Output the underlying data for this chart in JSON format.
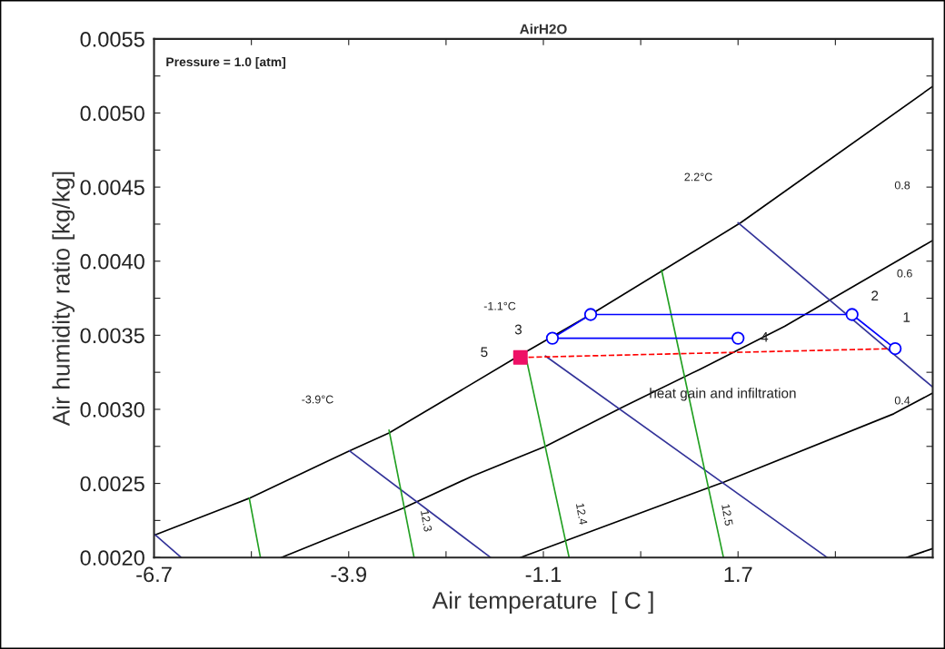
{
  "chart_data": {
    "type": "line",
    "title": "AirH2O",
    "xlabel": "Air temperature  [ C ]",
    "ylabel": "Air humidity ratio [kg/kg]",
    "xlim": [
      -6.7,
      4.5
    ],
    "ylim": [
      0.002,
      0.0055
    ],
    "xticks": [
      -6.7,
      {
        "value": -5.3,
        "label": null
      },
      -3.9,
      {
        "value": -2.5,
        "label": null
      },
      -1.1,
      {
        "value": 0.3,
        "label": null
      },
      1.7,
      {
        "value": 3.1,
        "label": null
      }
    ],
    "yticks": [
      {
        "value": 0.002,
        "label": "0.0020"
      },
      {
        "value": 0.00225,
        "label": null
      },
      0.0025,
      {
        "value": 0.00275,
        "label": null
      },
      {
        "value": 0.003,
        "label": "0.0030"
      },
      {
        "value": 0.00325,
        "label": null
      },
      0.0035,
      {
        "value": 0.00375,
        "label": null
      },
      {
        "value": 0.004,
        "label": "0.0040"
      },
      {
        "value": 0.00425,
        "label": null
      },
      0.0045,
      {
        "value": 0.00475,
        "label": null
      },
      {
        "value": 0.005,
        "label": "0.0050"
      },
      {
        "value": 0.00525,
        "label": null
      },
      0.0055
    ],
    "grid": false,
    "series": [
      {
        "type": "line",
        "color": "#000000",
        "x": [
          -6.7,
          -5.33,
          -3.89,
          -3.32,
          -1.49,
          -0.42,
          1.74,
          4.5
        ],
        "values": [
          0.00215,
          0.0024,
          0.00272,
          0.00284,
          0.00335,
          0.00364,
          0.00426,
          0.00518
        ]
      },
      {
        "type": "line",
        "color": "#000000",
        "x": [
          -4.87,
          -3.13,
          -2.12,
          -1.07,
          0.06,
          1.15,
          2.37,
          4.5
        ],
        "values": [
          0.002,
          0.00233,
          0.00255,
          0.00275,
          0.00302,
          0.00327,
          0.00356,
          0.00414
        ]
      },
      {
        "type": "line",
        "color": "#000000",
        "x": [
          -1.43,
          1.5,
          3.94,
          4.5
        ],
        "values": [
          0.002,
          0.00251,
          0.00297,
          0.00311
        ]
      },
      {
        "type": "line",
        "color": "#000000",
        "x": [
          4.12,
          4.5
        ],
        "values": [
          0.002,
          0.00206
        ]
      },
      {
        "type": "line",
        "color": "#333399",
        "x": [
          -6.7,
          -6.31
        ],
        "values": [
          0.00216,
          0.002
        ]
      },
      {
        "type": "line",
        "color": "#333399",
        "x": [
          -3.89,
          -1.86
        ],
        "values": [
          0.00272,
          0.002
        ]
      },
      {
        "type": "line",
        "color": "#333399",
        "x": [
          -1.07,
          2.98
        ],
        "values": [
          0.00336,
          0.002
        ]
      },
      {
        "type": "line",
        "color": "#333399",
        "x": [
          1.7,
          4.5
        ],
        "values": [
          0.00426,
          0.00315
        ]
      },
      {
        "type": "line",
        "color": "#22a022",
        "x": [
          -5.33,
          -5.17
        ],
        "values": [
          0.0024,
          0.002
        ]
      },
      {
        "type": "line",
        "color": "#22a022",
        "x": [
          -3.32,
          -2.96
        ],
        "values": [
          0.00286,
          0.002
        ]
      },
      {
        "type": "line",
        "color": "#22a022",
        "x": [
          -1.34,
          -0.73
        ],
        "values": [
          0.00333,
          0.002
        ]
      },
      {
        "type": "line",
        "color": "#22a022",
        "x": [
          0.6,
          1.49
        ],
        "values": [
          0.00394,
          0.002
        ]
      },
      {
        "type": "line",
        "color": "#ff0000",
        "line_style": "dashed",
        "x": [
          -1.43,
          3.96
        ],
        "values": [
          0.00335,
          0.00341
        ]
      },
      {
        "type": "line",
        "color": "#0000ff",
        "marker": "circle",
        "x": [
          1.7,
          -0.97,
          -0.42,
          3.34,
          3.96
        ],
        "values": [
          0.00348,
          0.00348,
          0.00364,
          0.00364,
          0.00341
        ]
      },
      {
        "type": "scatter",
        "color": "#ee1166",
        "marker": "square",
        "x": [
          -1.43
        ],
        "values": [
          0.00335
        ]
      }
    ],
    "annotations": [
      "Pressure = 1.0 [atm]",
      {
        "text": "1",
        "x": 3.96,
        "y": 0.00341
      },
      {
        "text": "2",
        "x": 3.34,
        "y": 0.00364
      },
      {
        "text": "3",
        "x": -0.97,
        "y": 0.00348
      },
      {
        "text": "4",
        "x": 1.7,
        "y": 0.00348
      },
      "5",
      {
        "text": "heat gain and infiltration",
        "x": 1.48,
        "y": 0.003382
      },
      "2.2°C",
      "-1.1°C",
      "-3.9°C",
      "0.8",
      "0.6",
      "0.4",
      {
        "text": "12.3",
        "x": -2.96,
        "y": 0.002
      },
      "12.4",
      "12.5"
    ]
  }
}
